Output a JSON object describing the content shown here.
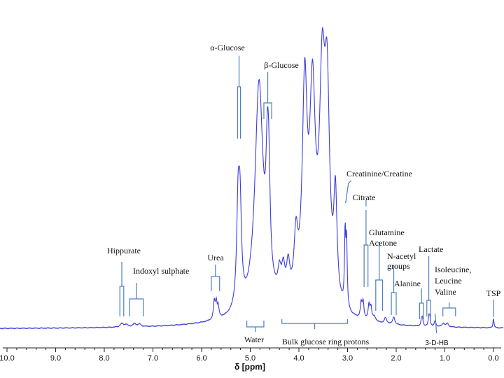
{
  "chart_data": {
    "type": "line",
    "xlabel": "δ [ppm]",
    "xlim": [
      10.0,
      -0.2
    ],
    "x_reversed": true,
    "ylim": [
      0,
      100
    ],
    "series_color": "#3b3bdc",
    "annotation_color": "#4a7fc1",
    "x_ticks": [
      "10.0",
      "9.0",
      "8.0",
      "7.0",
      "6.0",
      "5.0",
      "4.0",
      "3.0",
      "2.0",
      "1.0",
      "0.0"
    ],
    "x_tick_values": [
      10,
      9,
      8,
      7,
      6,
      5,
      4,
      3,
      2,
      1,
      0
    ],
    "spectrum_peaks": [
      {
        "ppm": 7.64,
        "height": 1.8,
        "width": 0.04
      },
      {
        "ppm": 7.55,
        "height": 1.2,
        "width": 0.04
      },
      {
        "ppm": 7.38,
        "height": 1.6,
        "width": 0.04
      },
      {
        "ppm": 7.28,
        "height": 1.3,
        "width": 0.04
      },
      {
        "ppm": 5.74,
        "height": 9.0,
        "width": 0.02
      },
      {
        "ppm": 5.7,
        "height": 8.5,
        "width": 0.02
      },
      {
        "ppm": 5.66,
        "height": 6.0,
        "width": 0.02
      },
      {
        "ppm": 5.25,
        "height": 50,
        "width": 0.035
      },
      {
        "ppm": 5.21,
        "height": 48,
        "width": 0.035
      },
      {
        "ppm": 4.82,
        "height": 120,
        "width": 0.1
      },
      {
        "ppm": 4.65,
        "height": 48,
        "width": 0.035
      },
      {
        "ppm": 4.62,
        "height": 46,
        "width": 0.035
      },
      {
        "ppm": 4.4,
        "height": 12,
        "width": 0.04
      },
      {
        "ppm": 4.32,
        "height": 14,
        "width": 0.04
      },
      {
        "ppm": 4.22,
        "height": 16,
        "width": 0.04
      },
      {
        "ppm": 4.06,
        "height": 30,
        "width": 0.045
      },
      {
        "ppm": 3.88,
        "height": 110,
        "width": 0.06
      },
      {
        "ppm": 3.72,
        "height": 105,
        "width": 0.07
      },
      {
        "ppm": 3.52,
        "height": 110,
        "width": 0.07
      },
      {
        "ppm": 3.42,
        "height": 100,
        "width": 0.06
      },
      {
        "ppm": 3.25,
        "height": 55,
        "width": 0.04
      },
      {
        "ppm": 3.05,
        "height": 38,
        "width": 0.015
      },
      {
        "ppm": 3.02,
        "height": 34,
        "width": 0.015
      },
      {
        "ppm": 2.72,
        "height": 8,
        "width": 0.02
      },
      {
        "ppm": 2.68,
        "height": 9,
        "width": 0.02
      },
      {
        "ppm": 2.56,
        "height": 8,
        "width": 0.02
      },
      {
        "ppm": 2.52,
        "height": 7,
        "width": 0.02
      },
      {
        "ppm": 2.45,
        "height": 2.5,
        "width": 0.04
      },
      {
        "ppm": 2.22,
        "height": 3,
        "width": 0.03
      },
      {
        "ppm": 2.05,
        "height": 4,
        "width": 0.025
      },
      {
        "ppm": 1.48,
        "height": 3.5,
        "width": 0.015
      },
      {
        "ppm": 1.46,
        "height": 3.5,
        "width": 0.015
      },
      {
        "ppm": 1.33,
        "height": 4.5,
        "width": 0.015
      },
      {
        "ppm": 1.31,
        "height": 4.5,
        "width": 0.015
      },
      {
        "ppm": 1.2,
        "height": 3,
        "width": 0.02
      },
      {
        "ppm": 1.03,
        "height": 1.8,
        "width": 0.03
      },
      {
        "ppm": 0.95,
        "height": 1.8,
        "width": 0.03
      },
      {
        "ppm": 0.0,
        "height": 5,
        "width": 0.012
      }
    ],
    "annotations": [
      {
        "label": "Hippurate",
        "ppm": 7.64,
        "style": "bar"
      },
      {
        "label": "Indoxyl sulphate",
        "ppm_range": [
          7.48,
          7.2
        ],
        "style": "bracket"
      },
      {
        "label": "Urea",
        "ppm_range": [
          5.8,
          5.63
        ],
        "style": "bracket"
      },
      {
        "label": "α-Glucose",
        "ppm": 5.23,
        "style": "bar"
      },
      {
        "label": "β-Glucose",
        "ppm_range": [
          4.72,
          4.56
        ],
        "style": "bracket"
      },
      {
        "label": "Water",
        "ppm_range": [
          5.07,
          4.72
        ],
        "style": "bracket-down"
      },
      {
        "label": "Bulk glucose ring protons",
        "ppm_range": [
          4.35,
          3.0
        ],
        "style": "bracket-down"
      },
      {
        "label": "Creatinine/Creatine",
        "ppm": 3.04,
        "style": "line"
      },
      {
        "label": "Citrate",
        "ppm": 2.62,
        "style": "bar"
      },
      {
        "label": "Glutamine",
        "ppm": 2.35,
        "style": "bar"
      },
      {
        "label": "Acetone",
        "ppm": 2.35,
        "style": "text"
      },
      {
        "label": "N-acetyl",
        "ppm": 2.06,
        "style": "bar"
      },
      {
        "label": "groups",
        "ppm": 2.06,
        "style": "text"
      },
      {
        "label": "Alanine",
        "ppm": 1.48,
        "style": "bar"
      },
      {
        "label": "Lactate",
        "ppm": 1.33,
        "style": "bar"
      },
      {
        "label": "Isoleucine,",
        "ppm_range": [
          1.04,
          0.78
        ],
        "style": "bracket"
      },
      {
        "label": "Leucine",
        "ppm": 1.0,
        "style": "text"
      },
      {
        "label": "Valine",
        "ppm": 1.0,
        "style": "text"
      },
      {
        "label": "3-D-HB",
        "ppm": 1.2,
        "style": "line"
      },
      {
        "label": "TSP",
        "ppm": 0.0,
        "style": "line"
      }
    ]
  }
}
